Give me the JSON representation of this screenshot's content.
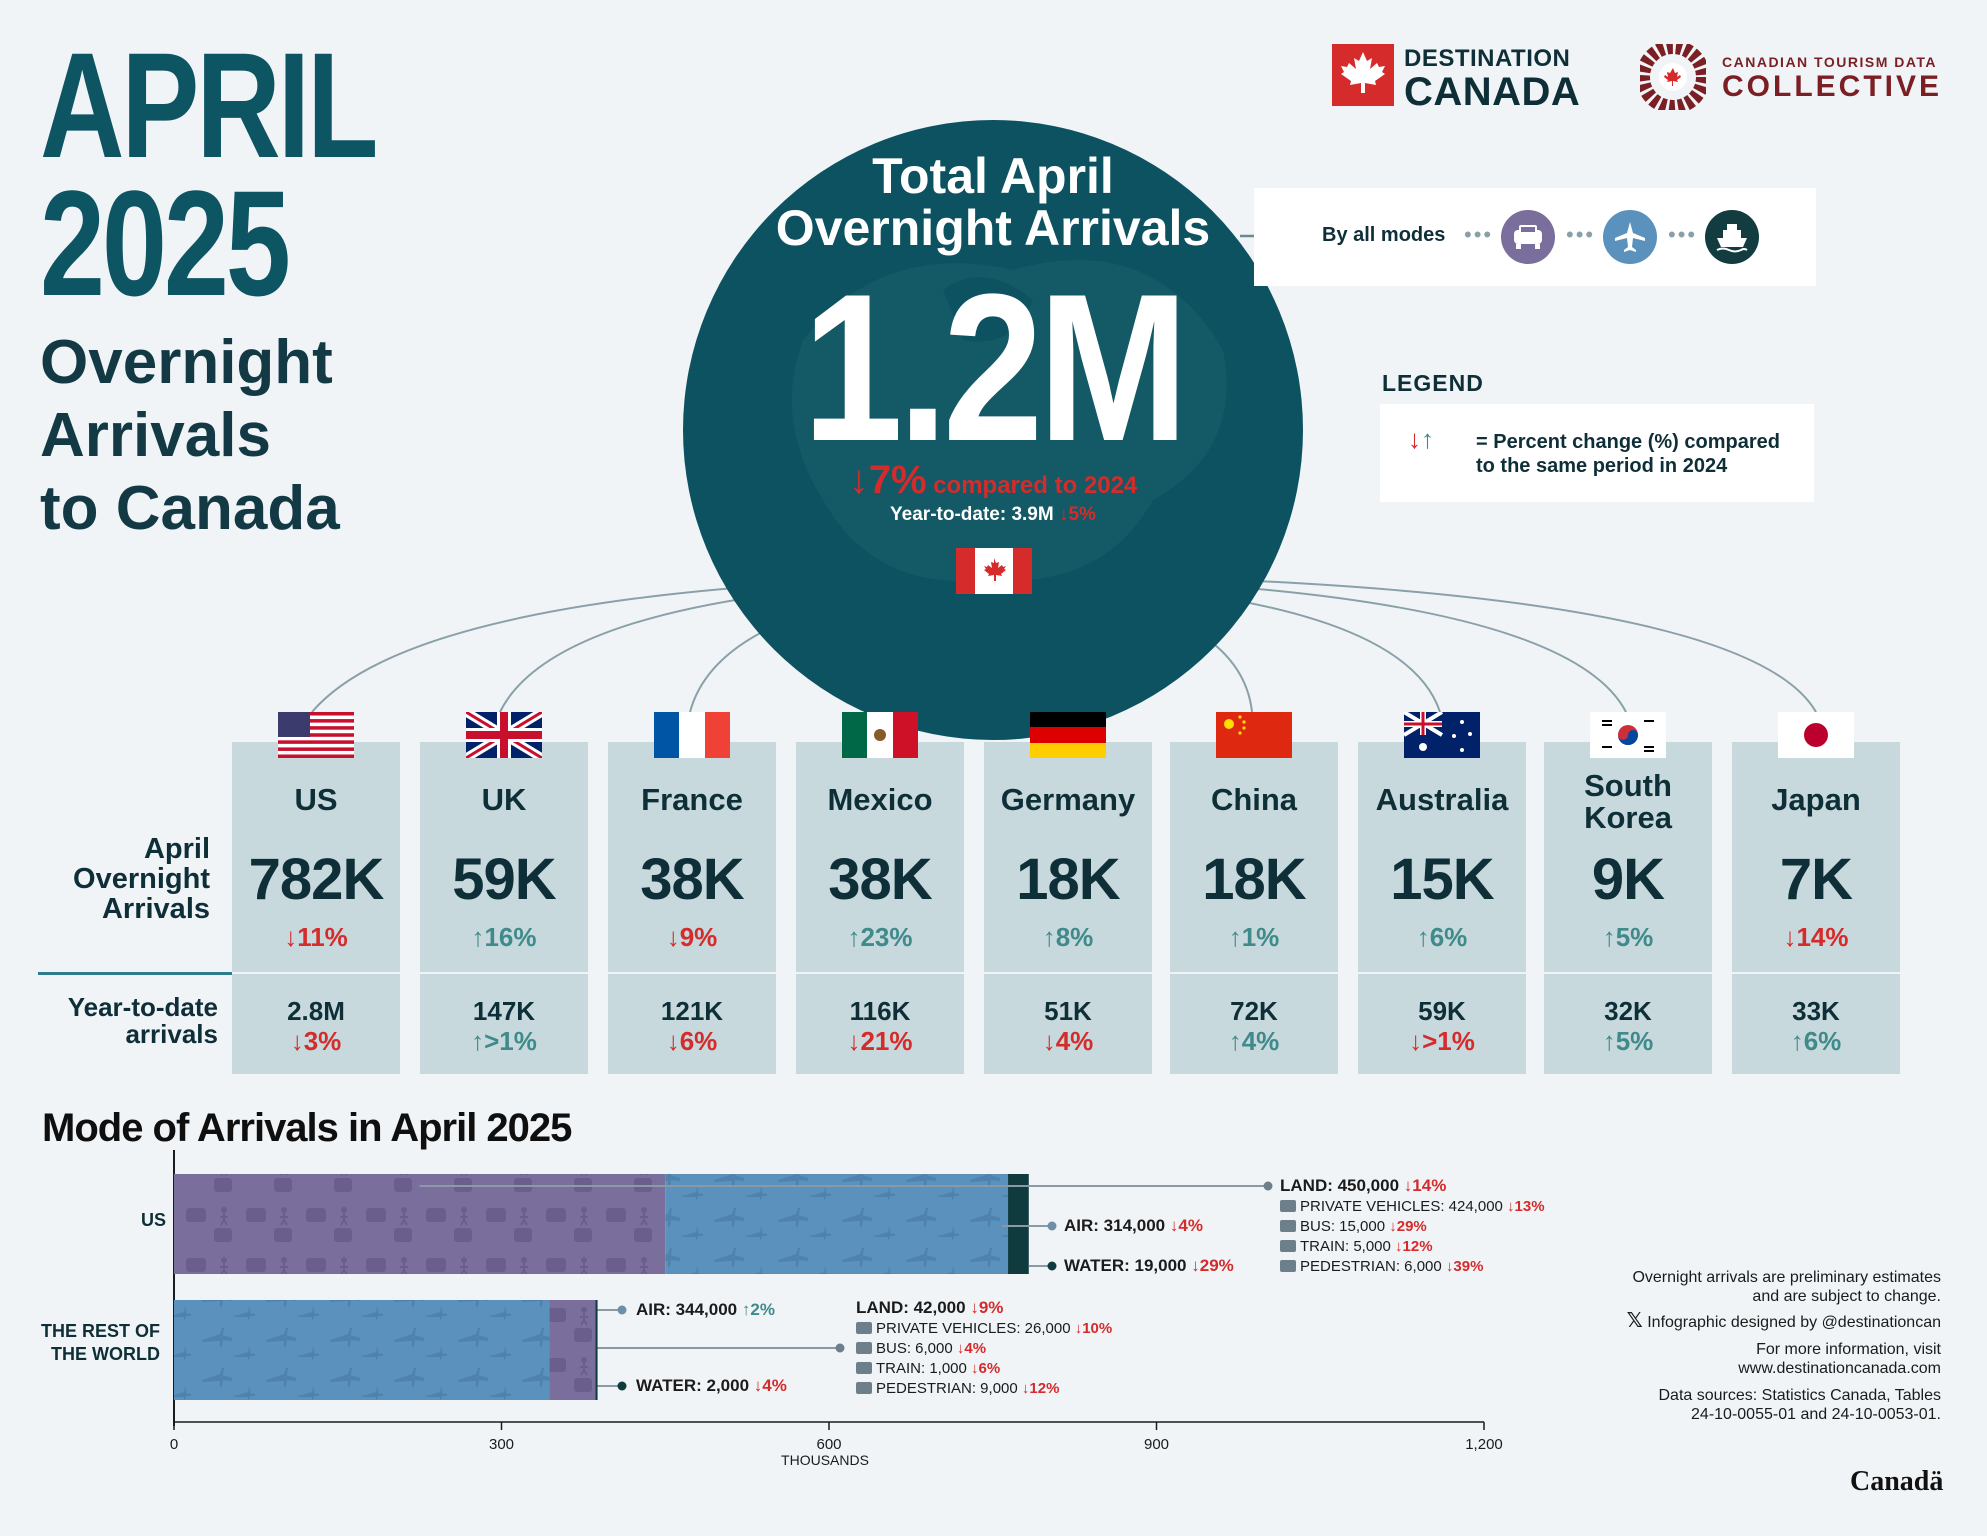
{
  "title": {
    "month": "APRIL",
    "year": "2025",
    "subtitle_lines": [
      "Overnight",
      "Arrivals",
      "to Canada"
    ]
  },
  "logos": {
    "dc_line1": "DESTINATION",
    "dc_line2": "CANADA",
    "ctdc_line1": "CANADIAN TOURISM DATA",
    "ctdc_line2": "COLLECTIVE"
  },
  "total": {
    "title_line1": "Total April",
    "title_line2": "Overnight Arrivals",
    "value": "1.2M",
    "change": "↓7% compared to 2024",
    "ytd_label": "Year-to-date: 3.9M",
    "ytd_change": "↓5%"
  },
  "modes_box": {
    "label": "By all modes",
    "icons": [
      "car-icon",
      "plane-icon",
      "ship-icon"
    ]
  },
  "legend": {
    "title": "LEGEND",
    "text": "= Percent change (%) compared to the same period in 2024",
    "arrows": "↓↑"
  },
  "row_labels": {
    "april": [
      "April",
      "Overnight",
      "Arrivals"
    ],
    "ytd": [
      "Year-to-date",
      "arrivals"
    ]
  },
  "countries": [
    {
      "name": "US",
      "value": "782K",
      "change": "↓11%",
      "dir": "down",
      "ytd": "2.8M",
      "ytd_change": "↓3%",
      "ytd_dir": "down"
    },
    {
      "name": "UK",
      "value": "59K",
      "change": "↑16%",
      "dir": "up",
      "ytd": "147K",
      "ytd_change": "↑>1%",
      "ytd_dir": "up"
    },
    {
      "name": "France",
      "value": "38K",
      "change": "↓9%",
      "dir": "down",
      "ytd": "121K",
      "ytd_change": "↓6%",
      "ytd_dir": "down"
    },
    {
      "name": "Mexico",
      "value": "38K",
      "change": "↑23%",
      "dir": "up",
      "ytd": "116K",
      "ytd_change": "↓21%",
      "ytd_dir": "down"
    },
    {
      "name": "Germany",
      "value": "18K",
      "change": "↑8%",
      "dir": "up",
      "ytd": "51K",
      "ytd_change": "↓4%",
      "ytd_dir": "down"
    },
    {
      "name": "China",
      "value": "18K",
      "change": "↑1%",
      "dir": "up",
      "ytd": "72K",
      "ytd_change": "↑4%",
      "ytd_dir": "up"
    },
    {
      "name": "Australia",
      "value": "15K",
      "change": "↑6%",
      "dir": "up",
      "ytd": "59K",
      "ytd_change": "↓>1%",
      "ytd_dir": "down"
    },
    {
      "name": "South Korea",
      "value": "9K",
      "change": "↑5%",
      "dir": "up",
      "ytd": "32K",
      "ytd_change": "↑5%",
      "ytd_dir": "up"
    },
    {
      "name": "Japan",
      "value": "7K",
      "change": "↓14%",
      "dir": "down",
      "ytd": "33K",
      "ytd_change": "↑6%",
      "ytd_dir": "up"
    }
  ],
  "colors": {
    "teal": "#0e5563",
    "red": "#d52b2b",
    "up": "#3f8a8a",
    "land": "#7a6e9c",
    "air": "#5b92bd",
    "water": "#0f3b3f",
    "card": "#c7d9dd"
  },
  "chart_data": {
    "type": "bar",
    "orientation": "horizontal",
    "stacked": true,
    "title": "Mode of Arrivals in April 2025",
    "categories": [
      "US",
      "THE REST OF THE WORLD"
    ],
    "series": [
      {
        "name": "LAND",
        "values": [
          450,
          42
        ]
      },
      {
        "name": "AIR",
        "values": [
          314,
          344
        ]
      },
      {
        "name": "WATER",
        "values": [
          19,
          2
        ]
      }
    ],
    "xlabel": "THOUSANDS",
    "xlim": [
      0,
      1200
    ],
    "xticks": [
      "0",
      "300",
      "600",
      "900",
      "1,200"
    ],
    "annotations": {
      "us": {
        "land": {
          "label": "LAND: 450,000",
          "chg": "↓14%",
          "sub": [
            {
              "label": "PRIVATE VEHICLES: 424,000",
              "chg": "↓13%"
            },
            {
              "label": "BUS: 15,000",
              "chg": "↓29%"
            },
            {
              "label": "TRAIN: 5,000",
              "chg": "↓12%"
            },
            {
              "label": "PEDESTRIAN: 6,000",
              "chg": "↓39%"
            }
          ]
        },
        "air": {
          "label": "AIR: 314,000",
          "chg": "↓4%"
        },
        "water": {
          "label": "WATER: 19,000",
          "chg": "↓29%"
        }
      },
      "row": {
        "air": {
          "label": "AIR: 344,000",
          "chg": "↑2%"
        },
        "land": {
          "label": "LAND: 42,000",
          "chg": "↓9%",
          "sub": [
            {
              "label": "PRIVATE VEHICLES: 26,000",
              "chg": "↓10%"
            },
            {
              "label": "BUS: 6,000",
              "chg": "↓4%"
            },
            {
              "label": "TRAIN: 1,000",
              "chg": "↓6%"
            },
            {
              "label": "PEDESTRIAN: 9,000",
              "chg": "↓12%"
            }
          ]
        },
        "water": {
          "label": "WATER: 2,000",
          "chg": "↓4%"
        }
      }
    }
  },
  "footer": {
    "note_line1": "Overnight arrivals are preliminary estimates",
    "note_line2": "and are subject to change.",
    "designed": "Infographic designed by @destinationcan",
    "info_line1": "For more information, visit",
    "info_line2": "www.destinationcanada.com",
    "sources_line1": "Data sources: Statistics Canada, Tables",
    "sources_line2": "24-10-0055-01 and 24-10-0053-01.",
    "wordmark": "Canadä"
  }
}
